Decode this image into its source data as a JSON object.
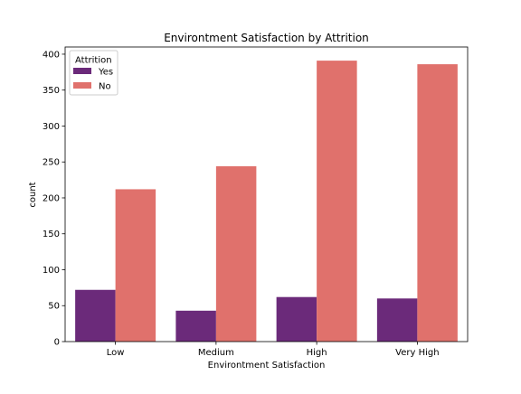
{
  "chart_data": {
    "type": "bar",
    "title": "Environtment Satisfaction by Attrition",
    "xlabel": "Environtment Satisfaction",
    "ylabel": "count",
    "categories": [
      "Low",
      "Medium",
      "High",
      "Very High"
    ],
    "series": [
      {
        "name": "Yes",
        "values": [
          72,
          43,
          62,
          60
        ],
        "color": "#6b2a7a"
      },
      {
        "name": "No",
        "values": [
          212,
          244,
          391,
          386
        ],
        "color": "#e0716c"
      }
    ],
    "ylim": [
      0,
      410
    ],
    "yticks": [
      "0",
      "50",
      "100",
      "150",
      "200",
      "250",
      "300",
      "350",
      "400"
    ],
    "grid": false,
    "legend": {
      "title": "Attrition",
      "placement": "top-left"
    }
  }
}
